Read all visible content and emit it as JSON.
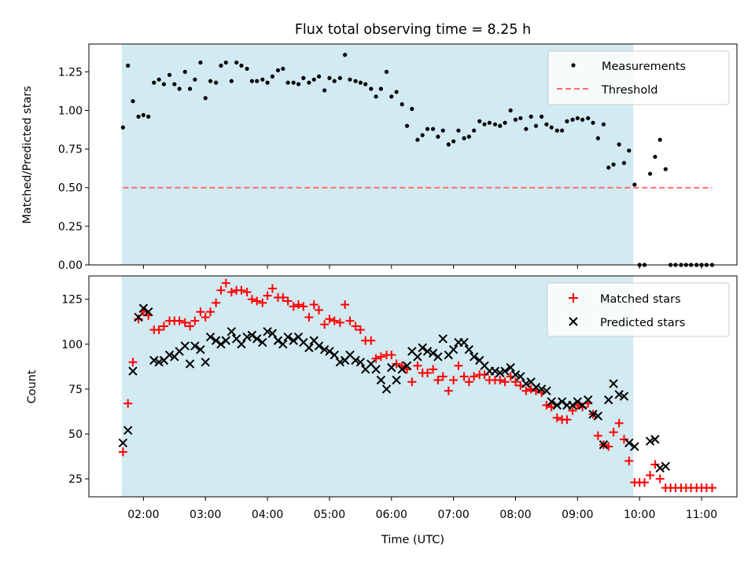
{
  "chart_data": [
    {
      "type": "scatter",
      "title": "Flux total observing time = 8.25 h",
      "xlabel": "",
      "ylabel": "Matched/Predicted stars",
      "x_unit": "hours (UTC)",
      "xlim": [
        1.12,
        11.57
      ],
      "ylim": [
        0,
        1.43
      ],
      "yticks": [
        "0.00",
        "0.25",
        "0.50",
        "0.75",
        "1.00",
        "1.25"
      ],
      "observing_window": [
        1.65,
        9.9
      ],
      "legend": {
        "position": "upper-right"
      },
      "series": [
        {
          "name": "Measurements",
          "marker": "dot",
          "color": "#000000",
          "x": [
            1.67,
            1.75,
            1.83,
            1.92,
            2.0,
            2.08,
            2.17,
            2.25,
            2.33,
            2.42,
            2.5,
            2.58,
            2.67,
            2.75,
            2.83,
            2.92,
            3.0,
            3.08,
            3.17,
            3.25,
            3.33,
            3.42,
            3.5,
            3.58,
            3.67,
            3.75,
            3.83,
            3.92,
            4.0,
            4.08,
            4.17,
            4.25,
            4.33,
            4.42,
            4.5,
            4.58,
            4.67,
            4.75,
            4.83,
            4.92,
            5.0,
            5.08,
            5.17,
            5.25,
            5.33,
            5.42,
            5.5,
            5.58,
            5.67,
            5.75,
            5.83,
            5.92,
            6.0,
            6.08,
            6.17,
            6.25,
            6.33,
            6.42,
            6.5,
            6.58,
            6.67,
            6.75,
            6.83,
            6.92,
            7.0,
            7.08,
            7.17,
            7.25,
            7.33,
            7.42,
            7.5,
            7.58,
            7.67,
            7.75,
            7.83,
            7.92,
            8.0,
            8.08,
            8.17,
            8.25,
            8.33,
            8.42,
            8.5,
            8.58,
            8.67,
            8.75,
            8.83,
            8.92,
            9.0,
            9.08,
            9.17,
            9.25,
            9.33,
            9.42,
            9.5,
            9.58,
            9.67,
            9.75,
            9.83,
            9.92,
            10.0,
            10.08,
            10.17,
            10.25,
            10.33,
            10.42,
            10.5,
            10.58,
            10.67,
            10.75,
            10.83,
            10.92,
            11.0,
            11.08,
            11.17
          ],
          "y": [
            0.89,
            1.29,
            1.06,
            0.96,
            0.97,
            0.96,
            1.18,
            1.2,
            1.17,
            1.23,
            1.17,
            1.14,
            1.25,
            1.14,
            1.2,
            1.31,
            1.08,
            1.19,
            1.18,
            1.29,
            1.31,
            1.19,
            1.31,
            1.29,
            1.27,
            1.19,
            1.19,
            1.2,
            1.18,
            1.22,
            1.26,
            1.27,
            1.18,
            1.18,
            1.17,
            1.21,
            1.18,
            1.2,
            1.22,
            1.13,
            1.21,
            1.19,
            1.21,
            1.36,
            1.2,
            1.19,
            1.18,
            1.17,
            1.14,
            1.09,
            1.14,
            1.25,
            1.09,
            1.12,
            1.04,
            0.9,
            1.01,
            0.81,
            0.84,
            0.88,
            0.88,
            0.83,
            0.87,
            0.78,
            0.8,
            0.87,
            0.82,
            0.83,
            0.87,
            0.93,
            0.91,
            0.92,
            0.91,
            0.9,
            0.92,
            1.0,
            0.94,
            0.95,
            0.88,
            0.96,
            0.9,
            0.96,
            0.91,
            0.89,
            0.87,
            0.87,
            0.93,
            0.94,
            0.95,
            0.94,
            0.95,
            0.92,
            0.82,
            0.91,
            0.63,
            0.65,
            0.78,
            0.66,
            0.74,
            0.52,
            0.0,
            0.0,
            0.59,
            0.7,
            0.81,
            0.62,
            0.0,
            0.0,
            0.0,
            0.0,
            0.0,
            0.0,
            0.0,
            0.0,
            0.0
          ]
        },
        {
          "name": "Threshold",
          "marker": "dashed-line",
          "color": "#ff6b6b",
          "x": [
            1.67,
            11.17
          ],
          "y": [
            0.5,
            0.5
          ]
        }
      ]
    },
    {
      "type": "scatter",
      "title": "",
      "xlabel": "Time (UTC)",
      "ylabel": "Count",
      "x_unit": "hours (UTC)",
      "xlim": [
        1.12,
        11.57
      ],
      "ylim": [
        15,
        138
      ],
      "xticks": [
        "02:00",
        "03:00",
        "04:00",
        "05:00",
        "06:00",
        "07:00",
        "08:00",
        "09:00",
        "10:00",
        "11:00"
      ],
      "xtick_hours": [
        2,
        3,
        4,
        5,
        6,
        7,
        8,
        9,
        10,
        11
      ],
      "yticks": [
        "25",
        "50",
        "75",
        "100",
        "125"
      ],
      "observing_window": [
        1.65,
        9.9
      ],
      "legend": {
        "position": "upper-right"
      },
      "series": [
        {
          "name": "Matched stars",
          "marker": "plus",
          "color": "#ff0000",
          "x": [
            1.67,
            1.75,
            1.83,
            1.92,
            2.0,
            2.08,
            2.17,
            2.25,
            2.33,
            2.42,
            2.5,
            2.58,
            2.67,
            2.75,
            2.83,
            2.92,
            3.0,
            3.08,
            3.17,
            3.25,
            3.33,
            3.42,
            3.5,
            3.58,
            3.67,
            3.75,
            3.83,
            3.92,
            4.0,
            4.08,
            4.17,
            4.25,
            4.33,
            4.42,
            4.5,
            4.58,
            4.67,
            4.75,
            4.83,
            4.92,
            5.0,
            5.08,
            5.17,
            5.25,
            5.33,
            5.42,
            5.5,
            5.58,
            5.67,
            5.75,
            5.83,
            5.92,
            6.0,
            6.08,
            6.17,
            6.25,
            6.33,
            6.42,
            6.5,
            6.58,
            6.67,
            6.75,
            6.83,
            6.92,
            7.0,
            7.08,
            7.17,
            7.25,
            7.33,
            7.42,
            7.5,
            7.58,
            7.67,
            7.75,
            7.83,
            7.92,
            8.0,
            8.08,
            8.17,
            8.25,
            8.33,
            8.42,
            8.5,
            8.58,
            8.67,
            8.75,
            8.83,
            8.92,
            9.0,
            9.08,
            9.17,
            9.25,
            9.33,
            9.42,
            9.5,
            9.58,
            9.67,
            9.75,
            9.83,
            9.92,
            10.0,
            10.08,
            10.17,
            10.25,
            10.33,
            10.42,
            10.5,
            10.58,
            10.67,
            10.75,
            10.83,
            10.92,
            11.0,
            11.08,
            11.17
          ],
          "y": [
            40,
            67,
            90,
            114,
            118,
            116,
            108,
            108,
            110,
            113,
            113,
            113,
            112,
            110,
            113,
            118,
            115,
            118,
            123,
            130,
            134,
            129,
            130,
            130,
            129,
            125,
            124,
            123,
            127,
            131,
            126,
            126,
            124,
            121,
            122,
            121,
            115,
            122,
            119,
            111,
            114,
            113,
            112,
            122,
            113,
            110,
            108,
            102,
            102,
            92,
            93,
            94,
            94,
            89,
            88,
            86,
            79,
            88,
            84,
            84,
            86,
            80,
            82,
            74,
            80,
            88,
            82,
            79,
            82,
            83,
            83,
            80,
            80,
            80,
            79,
            82,
            79,
            77,
            74,
            75,
            74,
            73,
            66,
            65,
            59,
            58,
            58,
            63,
            66,
            65,
            67,
            61,
            49,
            44,
            43,
            51,
            56,
            47,
            35,
            23,
            23,
            23,
            27,
            33,
            25,
            20,
            20,
            20,
            20,
            20,
            20,
            20,
            20,
            20,
            20
          ]
        },
        {
          "name": "Predicted stars",
          "marker": "x",
          "color": "#000000",
          "x": [
            1.67,
            1.75,
            1.83,
            1.92,
            2.0,
            2.08,
            2.17,
            2.25,
            2.33,
            2.42,
            2.5,
            2.58,
            2.67,
            2.75,
            2.83,
            2.92,
            3.0,
            3.08,
            3.17,
            3.25,
            3.33,
            3.42,
            3.5,
            3.58,
            3.67,
            3.75,
            3.83,
            3.92,
            4.0,
            4.08,
            4.17,
            4.25,
            4.33,
            4.42,
            4.5,
            4.58,
            4.67,
            4.75,
            4.83,
            4.92,
            5.0,
            5.08,
            5.17,
            5.25,
            5.33,
            5.42,
            5.5,
            5.58,
            5.67,
            5.75,
            5.83,
            5.92,
            6.0,
            6.08,
            6.17,
            6.25,
            6.33,
            6.42,
            6.5,
            6.58,
            6.67,
            6.75,
            6.83,
            6.92,
            7.0,
            7.08,
            7.17,
            7.25,
            7.33,
            7.42,
            7.5,
            7.58,
            7.67,
            7.75,
            7.83,
            7.92,
            8.0,
            8.08,
            8.17,
            8.25,
            8.33,
            8.42,
            8.5,
            8.58,
            8.67,
            8.75,
            8.83,
            8.92,
            9.0,
            9.08,
            9.17,
            9.25,
            9.33,
            9.42,
            9.5,
            9.58,
            9.67,
            9.75,
            9.83,
            9.92,
            10.17,
            10.25,
            10.33,
            10.42
          ],
          "y": [
            45,
            52,
            85,
            115,
            120,
            118,
            91,
            90,
            91,
            94,
            93,
            96,
            99,
            89,
            99,
            97,
            90,
            104,
            102,
            100,
            102,
            107,
            103,
            100,
            104,
            105,
            103,
            101,
            107,
            106,
            102,
            100,
            104,
            102,
            104,
            101,
            98,
            102,
            99,
            97,
            96,
            94,
            90,
            91,
            94,
            91,
            90,
            86,
            89,
            86,
            80,
            75,
            87,
            80,
            86,
            88,
            96,
            93,
            98,
            96,
            95,
            93,
            103,
            94,
            97,
            101,
            101,
            97,
            93,
            91,
            88,
            85,
            85,
            84,
            85,
            87,
            83,
            82,
            78,
            79,
            76,
            75,
            74,
            68,
            66,
            68,
            66,
            66,
            68,
            66,
            69,
            61,
            60,
            44,
            69,
            78,
            72,
            71,
            45,
            43,
            46,
            47,
            31,
            32
          ]
        }
      ]
    }
  ]
}
